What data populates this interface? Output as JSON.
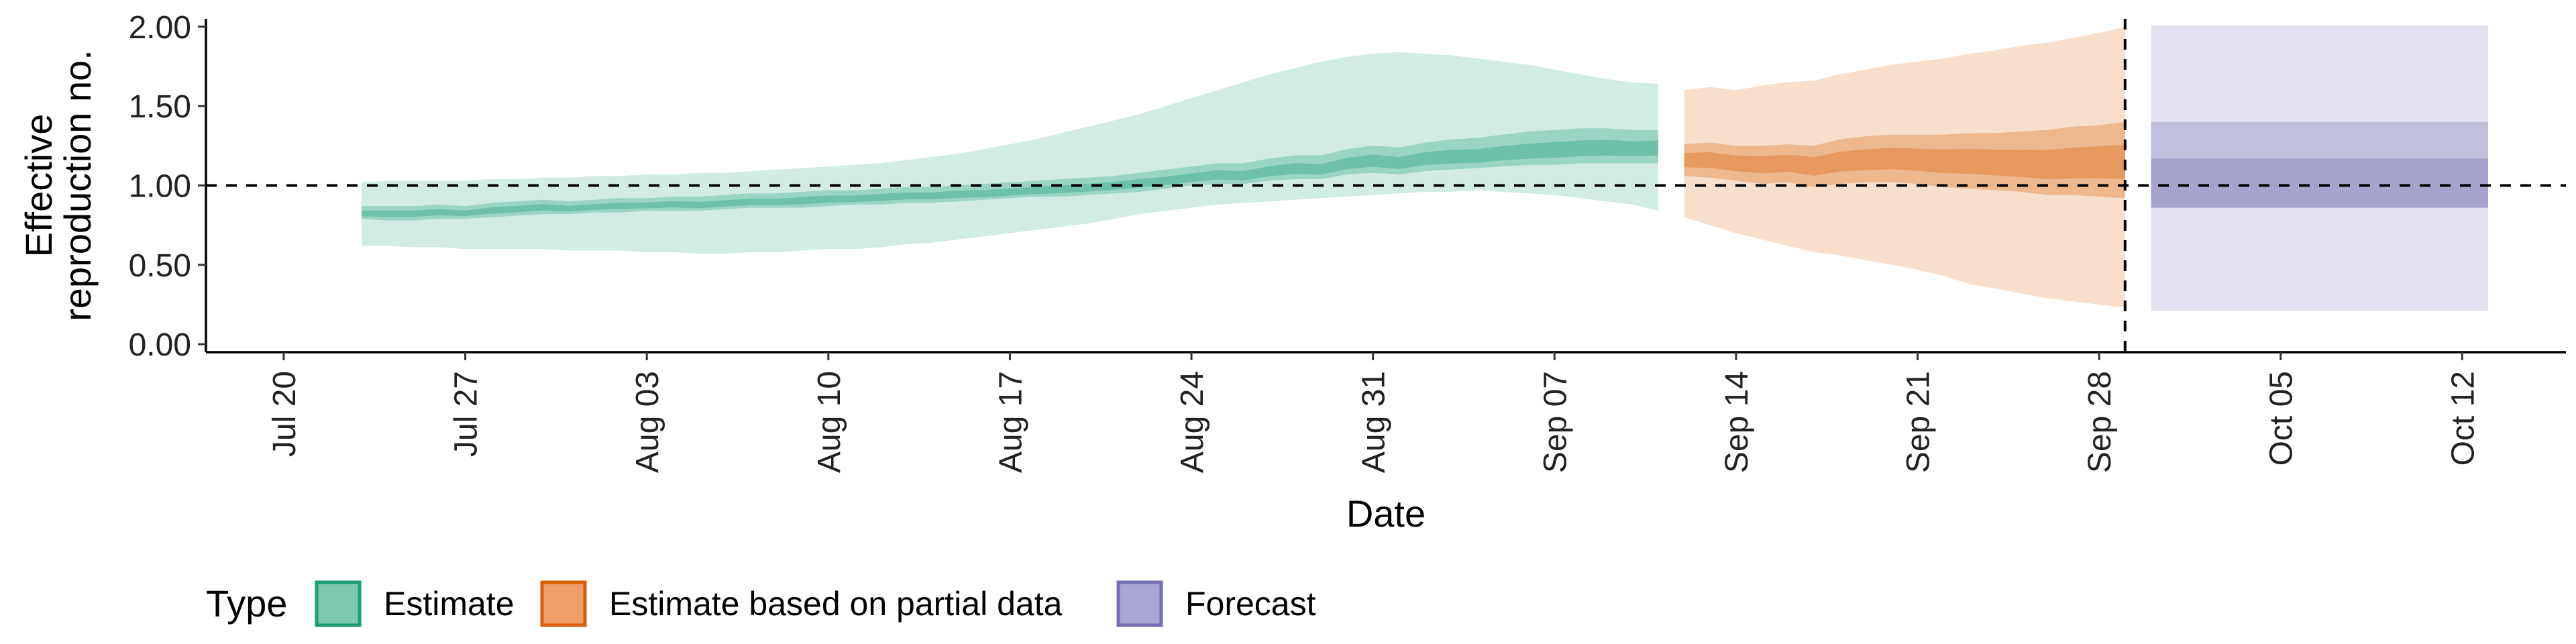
{
  "chart_data": {
    "type": "area",
    "xlabel": "Date",
    "ylabel_lines": [
      "Effective",
      "reproduction no."
    ],
    "x_axis": {
      "type": "date",
      "range": [
        "2020-07-17",
        "2020-10-16"
      ],
      "ticks": [
        "2020-07-20",
        "2020-07-27",
        "2020-08-03",
        "2020-08-10",
        "2020-08-17",
        "2020-08-24",
        "2020-08-31",
        "2020-09-07",
        "2020-09-14",
        "2020-09-21",
        "2020-09-28",
        "2020-10-05",
        "2020-10-12"
      ],
      "tick_labels": [
        "Jul 20",
        "Jul 27",
        "Aug 03",
        "Aug 10",
        "Aug 17",
        "Aug 24",
        "Aug 31",
        "Sep 07",
        "Sep 14",
        "Sep 21",
        "Sep 28",
        "Oct 05",
        "Oct 12"
      ],
      "tick_label_rotation": "vertical"
    },
    "y_axis": {
      "range": [
        -0.05,
        2.05
      ],
      "ticks": [
        0,
        0.5,
        1,
        1.5,
        2
      ],
      "tick_labels": [
        "0.00",
        "0.50",
        "1.00",
        "1.50",
        "2.00"
      ]
    },
    "reference_lines": {
      "horizontal_y": 1.0,
      "vertical_date": "2020-09-29",
      "style": "dashed"
    },
    "grid": false,
    "legend": {
      "title": "Type",
      "position": "bottom",
      "entries": [
        {
          "label": "Estimate",
          "fill": "#7bc8ad",
          "border": "#1b9e77"
        },
        {
          "label": "Estimate based on partial data",
          "fill": "#ee9e66",
          "border": "#d95f02"
        },
        {
          "label": "Forecast",
          "fill": "#a9a6d3",
          "border": "#7570b3"
        }
      ]
    },
    "series": [
      {
        "name": "Estimate",
        "color": "#1b9e77",
        "start_date": "2020-07-23",
        "end_date": "2020-09-11",
        "median": [
          0.82,
          0.82,
          0.82,
          0.83,
          0.82,
          0.84,
          0.85,
          0.86,
          0.85,
          0.86,
          0.87,
          0.87,
          0.88,
          0.87,
          0.88,
          0.89,
          0.89,
          0.9,
          0.91,
          0.91,
          0.92,
          0.93,
          0.93,
          0.94,
          0.94,
          0.95,
          0.96,
          0.97,
          0.98,
          0.99,
          1.01,
          1.02,
          1.04,
          1.06,
          1.05,
          1.08,
          1.1,
          1.09,
          1.13,
          1.15,
          1.13,
          1.16,
          1.17,
          1.17,
          1.19,
          1.2,
          1.21,
          1.22,
          1.23,
          1.22,
          1.23
        ],
        "lower_50": [
          0.79,
          0.78,
          0.78,
          0.79,
          0.79,
          0.8,
          0.81,
          0.82,
          0.82,
          0.83,
          0.83,
          0.84,
          0.84,
          0.84,
          0.85,
          0.86,
          0.86,
          0.86,
          0.87,
          0.88,
          0.88,
          0.89,
          0.89,
          0.9,
          0.91,
          0.92,
          0.93,
          0.93,
          0.94,
          0.95,
          0.96,
          0.98,
          1.0,
          1.01,
          1.01,
          1.03,
          1.04,
          1.04,
          1.07,
          1.08,
          1.07,
          1.09,
          1.1,
          1.11,
          1.12,
          1.13,
          1.13,
          1.14,
          1.14,
          1.14,
          1.14
        ],
        "upper_50": [
          0.87,
          0.87,
          0.87,
          0.88,
          0.87,
          0.89,
          0.9,
          0.91,
          0.9,
          0.91,
          0.92,
          0.92,
          0.93,
          0.93,
          0.94,
          0.95,
          0.95,
          0.96,
          0.97,
          0.97,
          0.98,
          0.99,
          0.99,
          1.0,
          1.01,
          1.02,
          1.03,
          1.04,
          1.05,
          1.06,
          1.08,
          1.1,
          1.12,
          1.14,
          1.14,
          1.17,
          1.19,
          1.19,
          1.23,
          1.25,
          1.24,
          1.27,
          1.29,
          1.3,
          1.32,
          1.34,
          1.35,
          1.36,
          1.36,
          1.35,
          1.35
        ],
        "lower_90": [
          0.62,
          0.62,
          0.61,
          0.61,
          0.6,
          0.6,
          0.6,
          0.6,
          0.59,
          0.59,
          0.59,
          0.58,
          0.58,
          0.57,
          0.57,
          0.58,
          0.58,
          0.59,
          0.6,
          0.6,
          0.61,
          0.63,
          0.64,
          0.66,
          0.68,
          0.7,
          0.72,
          0.74,
          0.76,
          0.79,
          0.82,
          0.84,
          0.86,
          0.88,
          0.89,
          0.9,
          0.91,
          0.92,
          0.93,
          0.94,
          0.95,
          0.96,
          0.96,
          0.97,
          0.96,
          0.95,
          0.94,
          0.92,
          0.9,
          0.88,
          0.84
        ],
        "upper_90": [
          1.02,
          1.03,
          1.03,
          1.03,
          1.03,
          1.04,
          1.04,
          1.05,
          1.05,
          1.06,
          1.06,
          1.07,
          1.07,
          1.08,
          1.08,
          1.09,
          1.1,
          1.11,
          1.12,
          1.13,
          1.14,
          1.16,
          1.18,
          1.2,
          1.23,
          1.26,
          1.29,
          1.33,
          1.37,
          1.41,
          1.45,
          1.5,
          1.55,
          1.6,
          1.65,
          1.7,
          1.74,
          1.78,
          1.81,
          1.83,
          1.84,
          1.83,
          1.82,
          1.8,
          1.78,
          1.76,
          1.73,
          1.7,
          1.67,
          1.65,
          1.64
        ]
      },
      {
        "name": "Estimate based on partial data",
        "color": "#d95f02",
        "start_date": "2020-09-12",
        "end_date": "2020-09-29",
        "median": [
          1.16,
          1.16,
          1.14,
          1.13,
          1.14,
          1.12,
          1.15,
          1.16,
          1.17,
          1.16,
          1.15,
          1.15,
          1.14,
          1.13,
          1.12,
          1.13,
          1.14,
          1.14
        ],
        "lower_50": [
          1.06,
          1.05,
          1.03,
          1.01,
          1.02,
          0.99,
          1.01,
          1.02,
          1.02,
          1.01,
          0.99,
          0.98,
          0.97,
          0.96,
          0.94,
          0.94,
          0.93,
          0.92
        ],
        "upper_50": [
          1.26,
          1.27,
          1.25,
          1.25,
          1.26,
          1.25,
          1.29,
          1.31,
          1.32,
          1.32,
          1.32,
          1.33,
          1.33,
          1.34,
          1.35,
          1.37,
          1.38,
          1.4
        ],
        "lower_90": [
          0.8,
          0.75,
          0.7,
          0.66,
          0.62,
          0.58,
          0.56,
          0.53,
          0.5,
          0.47,
          0.43,
          0.38,
          0.35,
          0.32,
          0.29,
          0.27,
          0.25,
          0.23
        ],
        "upper_90": [
          1.6,
          1.62,
          1.6,
          1.63,
          1.65,
          1.66,
          1.7,
          1.73,
          1.76,
          1.78,
          1.8,
          1.83,
          1.85,
          1.88,
          1.9,
          1.93,
          1.96,
          2.0
        ]
      },
      {
        "name": "Forecast",
        "color": "#7570b3",
        "start_date": "2020-09-30",
        "end_date": "2020-10-13",
        "median": 1.02,
        "lower_25": 0.86,
        "upper_25": 1.17,
        "lower_50": 0.86,
        "upper_50": 1.4,
        "lower_90": 0.21,
        "upper_90": 2.01
      }
    ]
  }
}
